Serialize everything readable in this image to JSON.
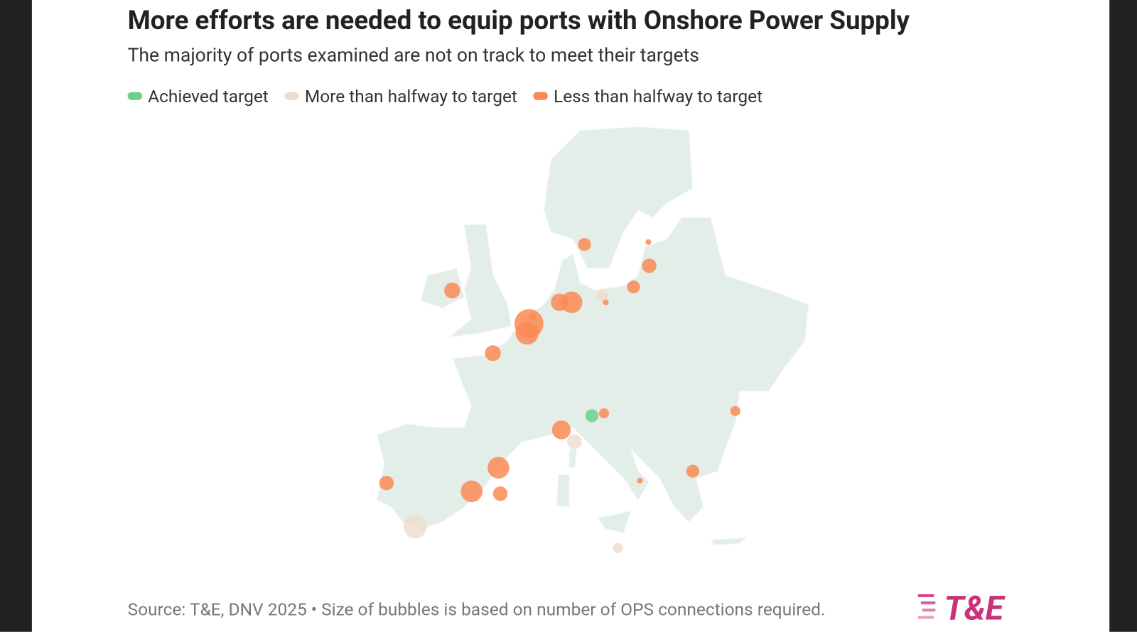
{
  "chart_data": {
    "type": "bubble_map",
    "title": "More efforts are needed to equip ports with Onshore Power Supply",
    "subtitle": "The majority of ports examined are not on track to meet their targets",
    "series": [
      {
        "name": "Achieved target",
        "color": "#6fcf8a",
        "lon": [
          13.1
        ],
        "lat": [
          44.3
        ],
        "size": [
          20
        ]
      },
      {
        "name": "More than halfway to target",
        "color": "#f0ddd0",
        "lon": [
          14.2,
          11.2,
          -6.0,
          15.9
        ],
        "lat": [
          54.5,
          42.1,
          34.9,
          33.1
        ],
        "size": [
          16,
          25,
          64,
          12
        ]
      },
      {
        "name": "Less than halfway to target",
        "color": "#fb8a55",
        "lon": [
          -2.0,
          12.3,
          19.2,
          19.3,
          17.6,
          9.6,
          10.9,
          14.6,
          6.3,
          6.1,
          6.7,
          2.4,
          14.4,
          9.8,
          3.0,
          0.1,
          3.2,
          -9.1,
          18.3,
          24.0,
          28.6
        ],
        "lat": [
          54.9,
          58.8,
          59.0,
          57.0,
          55.2,
          53.9,
          53.9,
          53.9,
          52.1,
          51.3,
          52.7,
          49.6,
          44.5,
          43.1,
          39.9,
          37.9,
          37.7,
          38.6,
          38.8,
          39.6,
          44.7
        ],
        "size": [
          30,
          20,
          4,
          25,
          20,
          36,
          56,
          4,
          100,
          64,
          6,
          30,
          12,
          42,
          56,
          56,
          25,
          25,
          4,
          20,
          12
        ]
      }
    ],
    "source": "Source: T&E, DNV 2025 • Size of bubbles is based on number of OPS connections required.",
    "logo": "T&E"
  }
}
